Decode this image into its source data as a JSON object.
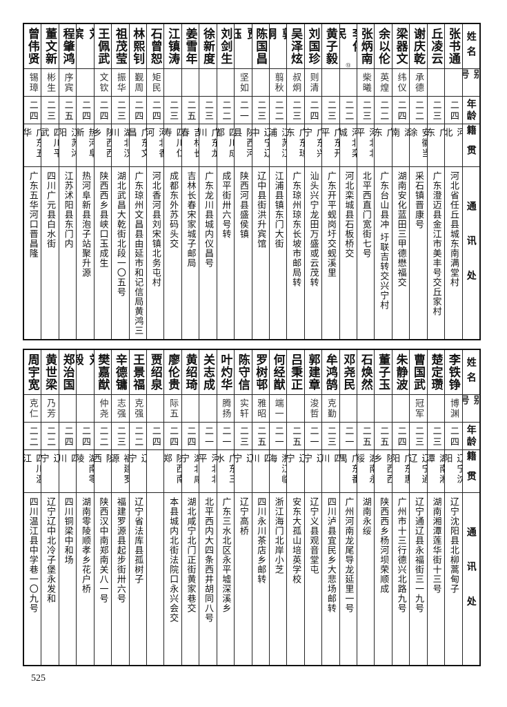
{
  "header": {
    "name": "姓名",
    "alias": "别号",
    "age": "年龄",
    "origin": "籍贯",
    "address": "通讯处"
  },
  "top_table": [
    {
      "name": "张书通",
      "alias": "",
      "age": "二四",
      "origin": "河北",
      "address": "河北省任丘县城东南满堂村"
    },
    {
      "name": "丘凌云",
      "alias": "",
      "age": "二三",
      "origin": "广东",
      "address": "广东澄迈县金江市美丰号交丘家村"
    },
    {
      "name": "谢庆乾",
      "alias": "承德",
      "age": "二二",
      "origin": "安徽当涂",
      "address": "采石镇晋康号"
    },
    {
      "name": "梁器文",
      "alias": "纬仪",
      "age": "二四",
      "origin": "湖南",
      "address": "湖南安化蓝田三甲德懋福交"
    },
    {
      "name": "余以伦",
      "alias": "英煌",
      "age": "二二",
      "origin": "广东",
      "address": "广东台山县冲 圩联吉转交兴宁村"
    },
    {
      "name": "张炳南",
      "alias": "柴曦",
      "age": "二三",
      "origin": "河北北平",
      "address": "北平西直门宽街七号"
    },
    {
      "name": "李化民",
      "note": "⑬",
      "alias": "",
      "age": "二二",
      "origin": "河北栾城",
      "address": "河北栾城县石板桥交"
    },
    {
      "name": "黄子毅",
      "alias": "",
      "age": "二三",
      "origin": "广东开平",
      "address": "广东开平蚬岗圩交蚬溪里"
    },
    {
      "name": "刘国珍",
      "alias": "则清",
      "age": "二四",
      "origin": "广东兴宁",
      "address": "汕头兴宁龙田万盛或云茂转"
    },
    {
      "name": "吴泽炫",
      "alias": "叔炯",
      "age": "二三",
      "origin": "广东琼东",
      "address": "广东琼州琼东长坡市邮局转"
    },
    {
      "name": "郭桐",
      "alias": "翦秋",
      "age": "二二",
      "origin": "江苏江浦",
      "address": "江浦县镇东门大街"
    },
    {
      "name": "陈国昌",
      "alias": "",
      "age": "二三",
      "origin": "辽宁辽中",
      "address": "辽中县街洪升宾馆"
    },
    {
      "name": "贾钰",
      "alias": "坚如",
      "age": "二一",
      "origin": "陕西河县",
      "address": "陕西河县盛侯镇"
    },
    {
      "name": "刘剑生",
      "alias": "",
      "age": "二二",
      "origin": "四川成都",
      "address": "成平街卅六号转"
    },
    {
      "name": "徐新度",
      "alias": "",
      "age": "二三",
      "origin": "广东龙川",
      "address": "广东龙川县城内仪昌号"
    },
    {
      "name": "姜雪年",
      "alias": "",
      "age": "二五",
      "origin": "吉林长春",
      "address": "吉林长春宋家城子邮局"
    },
    {
      "name": "江镇涛",
      "alias": "",
      "age": "二三",
      "origin": "四川仁寿",
      "address": "成都东外苏码头交"
    },
    {
      "name": "石曾恕",
      "alias": "矩民",
      "age": "二四",
      "origin": "河北香河",
      "address": "河北香河县刘宋镇北务屯村"
    },
    {
      "name": "林熙钊",
      "alias": "觐周",
      "age": "二四",
      "origin": "广东文昌",
      "address": "广东琼州文昌县由延市和记信局黄鸿三"
    },
    {
      "name": "祖茂莹",
      "alias": "振华",
      "age": "二三",
      "origin": "湖北汉川",
      "address": "湖北武昌大乾街北段一〇五号"
    },
    {
      "name": "王佩武",
      "alias": "文钦",
      "age": "二四",
      "origin": "陕西西乡",
      "address": "陕西西乡县峡口玉成生"
    },
    {
      "name": "刘瑸",
      "alias": "",
      "age": "二四",
      "origin": "热河阜新",
      "address": "热河阜新县泡子站聚升源"
    },
    {
      "name": "程肇鸿",
      "alias": "序宾",
      "age": "二五",
      "origin": "江苏沭阳",
      "address": "江苏沭阳县东门内"
    },
    {
      "name": "董文新",
      "alias": "彬生",
      "age": "二三",
      "origin": "四川平武",
      "address": "四川广元县白水街"
    },
    {
      "name": "曾伟贤",
      "alias": "锡璋",
      "age": "二四",
      "origin": "广东五华",
      "address": "广东五华河口晋昌隆"
    }
  ],
  "bottom_table": [
    {
      "name": "李铁铮",
      "alias": "博渊",
      "age": "二四",
      "origin": "辽宁沈阳",
      "address": "辽宁沈阳县北柳蒿甸子"
    },
    {
      "name": "楚定瓒",
      "alias": "",
      "age": "二三",
      "origin": "湖南湘潭",
      "address": "湖南湘潭莲华街十三号"
    },
    {
      "name": "曹国武",
      "alias": "冠军",
      "age": "二三",
      "origin": "辽宁通辽",
      "address": "辽宁通辽县永福街三一九号"
    },
    {
      "name": "朱静波",
      "alias": "",
      "age": "二四",
      "origin": "广东惠阳",
      "address": "广州市十三行德兴北路九号"
    },
    {
      "name": "董子玉",
      "alias": "",
      "age": "二五",
      "origin": "陕西西乡",
      "address": "陕西西乡杨河坝荣顺成"
    },
    {
      "name": "石焕然",
      "alias": "",
      "age": "二五",
      "origin": "湖南永绥",
      "address": "湖南永绥"
    },
    {
      "name": "邓尧民",
      "alias": "",
      "age": "二一",
      "origin": "广东番禺",
      "address": "广州河南龙尾导龙延里一号"
    },
    {
      "name": "牟鸿鹄",
      "alias": "克勤",
      "age": "二三",
      "origin": "四川",
      "address": "四川泸县宜民乡大悲场邮转"
    },
    {
      "name": "郭建章",
      "alias": "浚哲",
      "age": "二一",
      "origin": "辽宁",
      "address": "辽宁义县观音堂屯"
    },
    {
      "name": "吕秉正",
      "alias": "",
      "age": "二五",
      "origin": "辽宁",
      "address": "安东大孤山培英学校"
    },
    {
      "name": "何经猷",
      "alias": "端一",
      "age": "二一",
      "origin": "浙江临海",
      "address": "浙江海门北岸小芝"
    },
    {
      "name": "罗树邨",
      "alias": "雅昭",
      "age": "二五",
      "origin": "四川",
      "address": "四川永川茶店乡邮转"
    },
    {
      "name": "陈守信",
      "alias": "实轩",
      "age": "二三",
      "origin": "辽宁",
      "address": "辽宁高桥"
    },
    {
      "name": "叶灼华",
      "alias": "腾扬",
      "age": "二一",
      "origin": "广东三水",
      "address": "广东三水北区永平墟深溪乡"
    },
    {
      "name": "关志成",
      "alias": "",
      "age": "二一",
      "origin": "河北北平",
      "address": "北平西内大四条西井胡同八号"
    },
    {
      "name": "黄绍琦",
      "alias": "",
      "age": "二四",
      "origin": "湖北咸宁",
      "address": "湖北咸宁北门正街黄家巷交"
    },
    {
      "name": "廖伦贵",
      "alias": "际五",
      "age": "二四",
      "origin": "陕西南郑",
      "address": "本县城内北街法院口永兴会交"
    },
    {
      "name": "贾绍泉",
      "alias": "",
      "age": "二四",
      "origin": "",
      "address": ""
    },
    {
      "name": "王景福",
      "alias": "克强",
      "age": "二二",
      "origin": "辽宁",
      "address": "辽宁省法库县孤树子"
    },
    {
      "name": "辛德镛",
      "alias": "志强",
      "age": "二三",
      "origin": "福建罗源",
      "address": "福建罗源县起步街卅六号"
    },
    {
      "name": "樊嘉猷",
      "alias": "仲尧",
      "age": "二二",
      "origin": "陕西",
      "address": "陕西汉中南郑南关八一号"
    },
    {
      "name": "刘毅",
      "alias": "",
      "age": "二四",
      "origin": "湖南零陵",
      "address": "湖南零陵顺孝乡花户桥"
    },
    {
      "name": "郑治国",
      "alias": "",
      "age": "二四",
      "origin": "四川",
      "address": "四川铜梁中和场"
    },
    {
      "name": "黄世梁",
      "alias": "乃芳",
      "age": "二二",
      "origin": "辽宁",
      "address": "辽宁辽中北冷子堡永发和"
    },
    {
      "name": "周宇宽",
      "alias": "克仁",
      "age": "二二",
      "origin": "四川温江",
      "address": "四川温江县中学巷一〇九号"
    }
  ],
  "page_number": "525"
}
